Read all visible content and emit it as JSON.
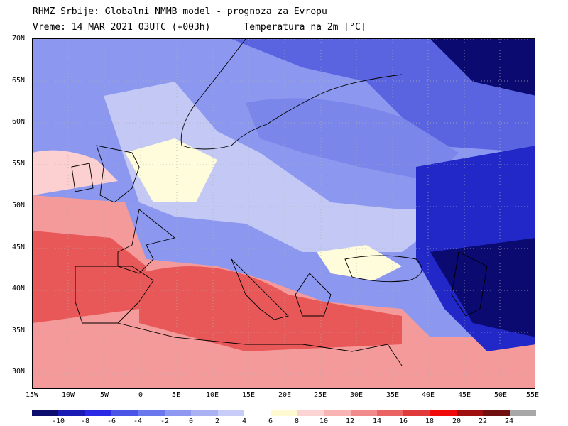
{
  "header": {
    "line1": "RHMZ Srbije: Globalni NMMB model - prognoza za Evropu",
    "line2": "Vreme: 14 MAR 2021 03UTC (+003h)      Temperatura na 2m [°C]"
  },
  "map": {
    "lat_labels": [
      "70N",
      "65N",
      "60N",
      "55N",
      "50N",
      "45N",
      "40N",
      "35N",
      "30N"
    ],
    "lon_labels": [
      "15W",
      "10W",
      "5W",
      "0",
      "5E",
      "10E",
      "15E",
      "20E",
      "25E",
      "30E",
      "35E",
      "40E",
      "45E",
      "50E",
      "55E"
    ],
    "colors": {
      "sea_warm": "#e85858",
      "land_warm": "#f59a9a",
      "land_mild": "#fcd0d0",
      "neutral": "#fffcdc",
      "cool": "#c4c8f4",
      "cold": "#7a86ea",
      "very_cold": "#2228c8",
      "frigid": "#0a0a70",
      "ocean_north": "#8c98f0"
    }
  },
  "legend": {
    "labels": [
      "-10",
      "-8",
      "-6",
      "-4",
      "-2",
      "0",
      "2",
      "4",
      "6",
      "8",
      "10",
      "12",
      "14",
      "16",
      "18",
      "20",
      "22",
      "24"
    ],
    "colors": [
      "#0d0d6e",
      "#1a1ab4",
      "#2a2ae6",
      "#4a55e8",
      "#6b77ec",
      "#8e98f0",
      "#aab2f4",
      "#c8ccf8",
      "#ffffff",
      "#fffad2",
      "#fcd4d4",
      "#fab4b4",
      "#f28b8b",
      "#ea6464",
      "#e03a3a",
      "#f00a0a",
      "#a01010",
      "#701010",
      "#a8a8a8"
    ]
  }
}
